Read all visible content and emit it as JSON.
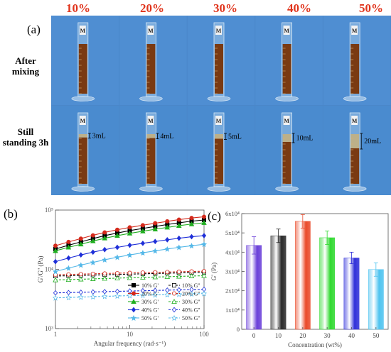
{
  "photo_panel": {
    "label": "(a)",
    "concentrations": [
      "10%",
      "20%",
      "30%",
      "40%",
      "50%"
    ],
    "rows": [
      "After mixing",
      "Still standing 3h"
    ],
    "row_words": [
      [
        "After",
        "mixing"
      ],
      [
        "Still",
        "standing 3h"
      ]
    ],
    "separation_labels": [
      "3mL",
      "4mL",
      "5mL",
      "10mL",
      "20mL"
    ],
    "colors": {
      "background": "#4a87c9",
      "label_red": "#e0341c",
      "fluid": "#7a3a12"
    }
  },
  "chart_data": [
    {
      "panel": "(b)",
      "type": "line",
      "xlabel": "Angular frequency (rad·s⁻¹)",
      "ylabel": "G'/G'' (Pa)",
      "xscale": "log",
      "yscale": "log",
      "xlim": [
        1,
        100
      ],
      "ylim": [
        1000,
        100000
      ],
      "xticks": [
        "1",
        "10",
        "100"
      ],
      "yticks": [
        "10³",
        "10⁴",
        "10⁵"
      ],
      "legend_position": "bottom-right",
      "x": [
        1,
        1.5,
        2.2,
        3.2,
        4.6,
        6.8,
        10,
        15,
        22,
        32,
        46,
        68,
        100
      ],
      "series": [
        {
          "name": "10% G'",
          "color": "#000000",
          "marker": "square",
          "dashed": false,
          "values": [
            22000,
            25500,
            29000,
            33000,
            37000,
            41000,
            45000,
            49000,
            53000,
            57000,
            61000,
            65000,
            68000
          ]
        },
        {
          "name": "10% G''",
          "color": "#000000",
          "marker": "square-open",
          "dashed": true,
          "values": [
            7700,
            7800,
            7900,
            8000,
            8100,
            8200,
            8300,
            8400,
            8500,
            8600,
            8700,
            8800,
            8900
          ]
        },
        {
          "name": "20% G'",
          "color": "#d42a1c",
          "marker": "circle",
          "dashed": false,
          "values": [
            25000,
            29000,
            33000,
            37500,
            42000,
            46500,
            51000,
            55500,
            60000,
            64500,
            69000,
            73500,
            77000
          ]
        },
        {
          "name": "20% G''",
          "color": "#d42a1c",
          "marker": "circle-open",
          "dashed": true,
          "values": [
            8100,
            8200,
            8300,
            8400,
            8500,
            8600,
            8700,
            8800,
            8900,
            9000,
            9100,
            9200,
            9300
          ]
        },
        {
          "name": "30% G'",
          "color": "#1fae1f",
          "marker": "triangle",
          "dashed": false,
          "values": [
            20500,
            23500,
            26500,
            30000,
            33500,
            37000,
            40500,
            44000,
            47500,
            51000,
            54500,
            58000,
            61000
          ]
        },
        {
          "name": "30% G''",
          "color": "#1fae1f",
          "marker": "triangle-open",
          "dashed": true,
          "values": [
            6600,
            6700,
            6800,
            6900,
            7000,
            7100,
            7200,
            7300,
            7400,
            7500,
            7600,
            7700,
            7800
          ]
        },
        {
          "name": "40% G'",
          "color": "#1f2fd8",
          "marker": "diamond",
          "dashed": false,
          "values": [
            13500,
            15500,
            17500,
            19500,
            21500,
            23500,
            25500,
            27500,
            29500,
            31500,
            33500,
            35500,
            37000
          ]
        },
        {
          "name": "40% G''",
          "color": "#1f2fd8",
          "marker": "diamond-open",
          "dashed": true,
          "values": [
            4000,
            4050,
            4100,
            4150,
            4200,
            4250,
            4300,
            4350,
            4400,
            4450,
            4500,
            4550,
            4600
          ]
        },
        {
          "name": "50% G'",
          "color": "#55b8e8",
          "marker": "star",
          "dashed": false,
          "values": [
            9200,
            10500,
            11800,
            13100,
            14500,
            16000,
            17500,
            19000,
            20500,
            22000,
            23500,
            25000,
            26500
          ]
        },
        {
          "name": "50% G''",
          "color": "#55b8e8",
          "marker": "star-open",
          "dashed": true,
          "values": [
            3300,
            3350,
            3400,
            3450,
            3500,
            3550,
            3600,
            3650,
            3700,
            3750,
            3800,
            3850,
            3900
          ]
        }
      ]
    },
    {
      "panel": "(c)",
      "type": "bar",
      "xlabel": "Concentration (wt%)",
      "ylabel": "G' (Pa)",
      "categories": [
        "0",
        "10",
        "20",
        "30",
        "40",
        "50"
      ],
      "values": [
        43500,
        48500,
        56000,
        47500,
        37000,
        31000
      ],
      "errors": [
        4500,
        3500,
        3500,
        3500,
        3000,
        3500
      ],
      "colors": [
        "#6a3fd9",
        "#2a2a2a",
        "#ea4a2a",
        "#2fd92f",
        "#2f2fd9",
        "#4fc4f0"
      ],
      "ylim": [
        0,
        60000
      ],
      "yticks": [
        "0",
        "1x10⁴",
        "2x10⁴",
        "3x10⁴",
        "4x10⁴",
        "5x10⁴",
        "6x10⁴"
      ]
    }
  ]
}
